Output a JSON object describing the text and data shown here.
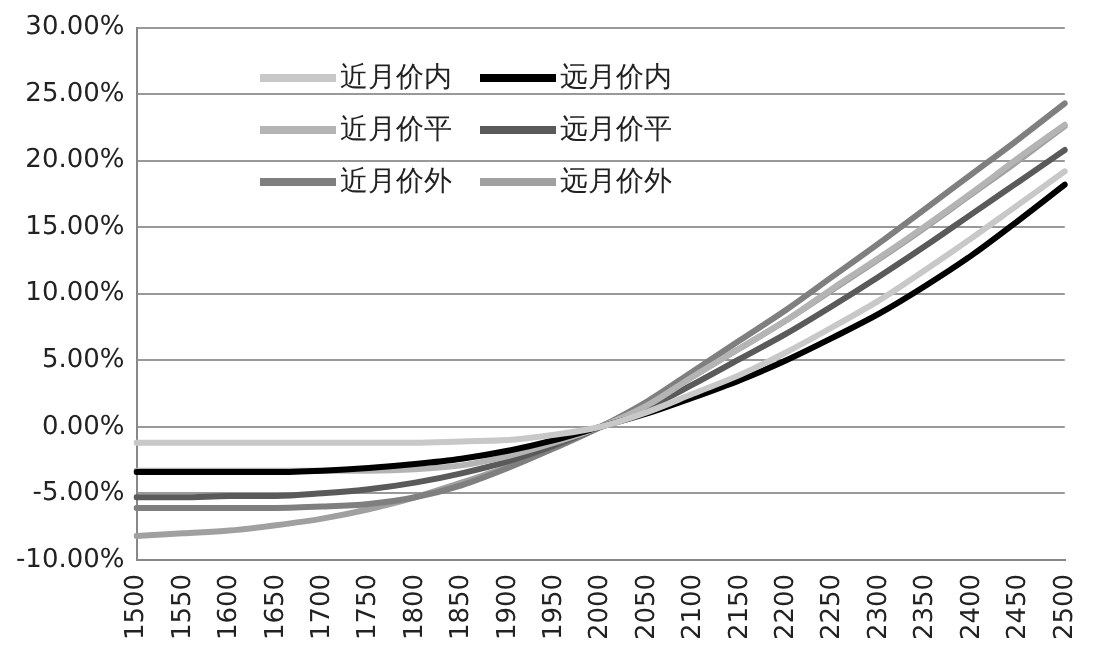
{
  "chart_data": {
    "type": "line",
    "categories": [
      "1500",
      "1550",
      "1600",
      "1650",
      "1700",
      "1750",
      "1800",
      "1850",
      "1900",
      "1950",
      "2000",
      "2050",
      "2100",
      "2150",
      "2200",
      "2250",
      "2300",
      "2350",
      "2400",
      "2450",
      "2500"
    ],
    "series": [
      {
        "name": "近月价内",
        "color": "#c8c8c8",
        "values": [
          -1.2,
          -1.2,
          -1.2,
          -1.2,
          -1.2,
          -1.2,
          -1.2,
          -1.1,
          -1.0,
          -0.6,
          0,
          1.1,
          2.5,
          3.9,
          5.6,
          7.5,
          9.5,
          11.8,
          14.2,
          16.7,
          19.2
        ]
      },
      {
        "name": "远月价内",
        "color": "#000000",
        "values": [
          -3.4,
          -3.4,
          -3.4,
          -3.4,
          -3.3,
          -3.1,
          -2.8,
          -2.4,
          -1.8,
          -1.0,
          0,
          1.0,
          2.2,
          3.5,
          5.0,
          6.7,
          8.5,
          10.6,
          12.9,
          15.5,
          18.2
        ]
      },
      {
        "name": "近月价平",
        "color": "#b4b4b4",
        "values": [
          -3.3,
          -3.3,
          -3.3,
          -3.3,
          -3.3,
          -3.3,
          -3.2,
          -2.9,
          -2.2,
          -1.2,
          0,
          1.6,
          3.8,
          5.9,
          8.0,
          10.4,
          12.7,
          15.1,
          17.6,
          20.2,
          22.7
        ]
      },
      {
        "name": "远月价平",
        "color": "#5a5a5a",
        "values": [
          -5.3,
          -5.3,
          -5.2,
          -5.2,
          -5.0,
          -4.7,
          -4.2,
          -3.5,
          -2.6,
          -1.4,
          0,
          1.4,
          3.2,
          5.1,
          7.0,
          9.1,
          11.3,
          13.6,
          16.0,
          18.4,
          20.8
        ]
      },
      {
        "name": "近月价外",
        "color": "#7f7f7f",
        "values": [
          -6.1,
          -6.1,
          -6.1,
          -6.1,
          -6.0,
          -5.8,
          -5.3,
          -4.4,
          -3.1,
          -1.6,
          0,
          1.9,
          4.2,
          6.5,
          8.8,
          11.3,
          13.8,
          16.4,
          19.0,
          21.6,
          24.3
        ]
      },
      {
        "name": "远月价外",
        "color": "#a0a0a0",
        "values": [
          -8.2,
          -8.0,
          -7.8,
          -7.4,
          -6.9,
          -6.2,
          -5.3,
          -4.2,
          -3.0,
          -1.6,
          0,
          1.7,
          3.8,
          5.9,
          8.0,
          10.3,
          12.6,
          15.0,
          17.5,
          20.0,
          22.6
        ]
      }
    ],
    "ylim": [
      -10,
      30
    ],
    "yticks": [
      {
        "value": -10,
        "label": "-10.00%"
      },
      {
        "value": -5,
        "label": "-5.00%"
      },
      {
        "value": 0,
        "label": "0.00%"
      },
      {
        "value": 5,
        "label": "5.00%"
      },
      {
        "value": 10,
        "label": "10.00%"
      },
      {
        "value": 15,
        "label": "15.00%"
      },
      {
        "value": 20,
        "label": "20.00%"
      },
      {
        "value": 25,
        "label": "25.00%"
      },
      {
        "value": 30,
        "label": "30.00%"
      }
    ],
    "grid": "y",
    "legend": "top left",
    "marker": "none",
    "line_style": "solid"
  }
}
